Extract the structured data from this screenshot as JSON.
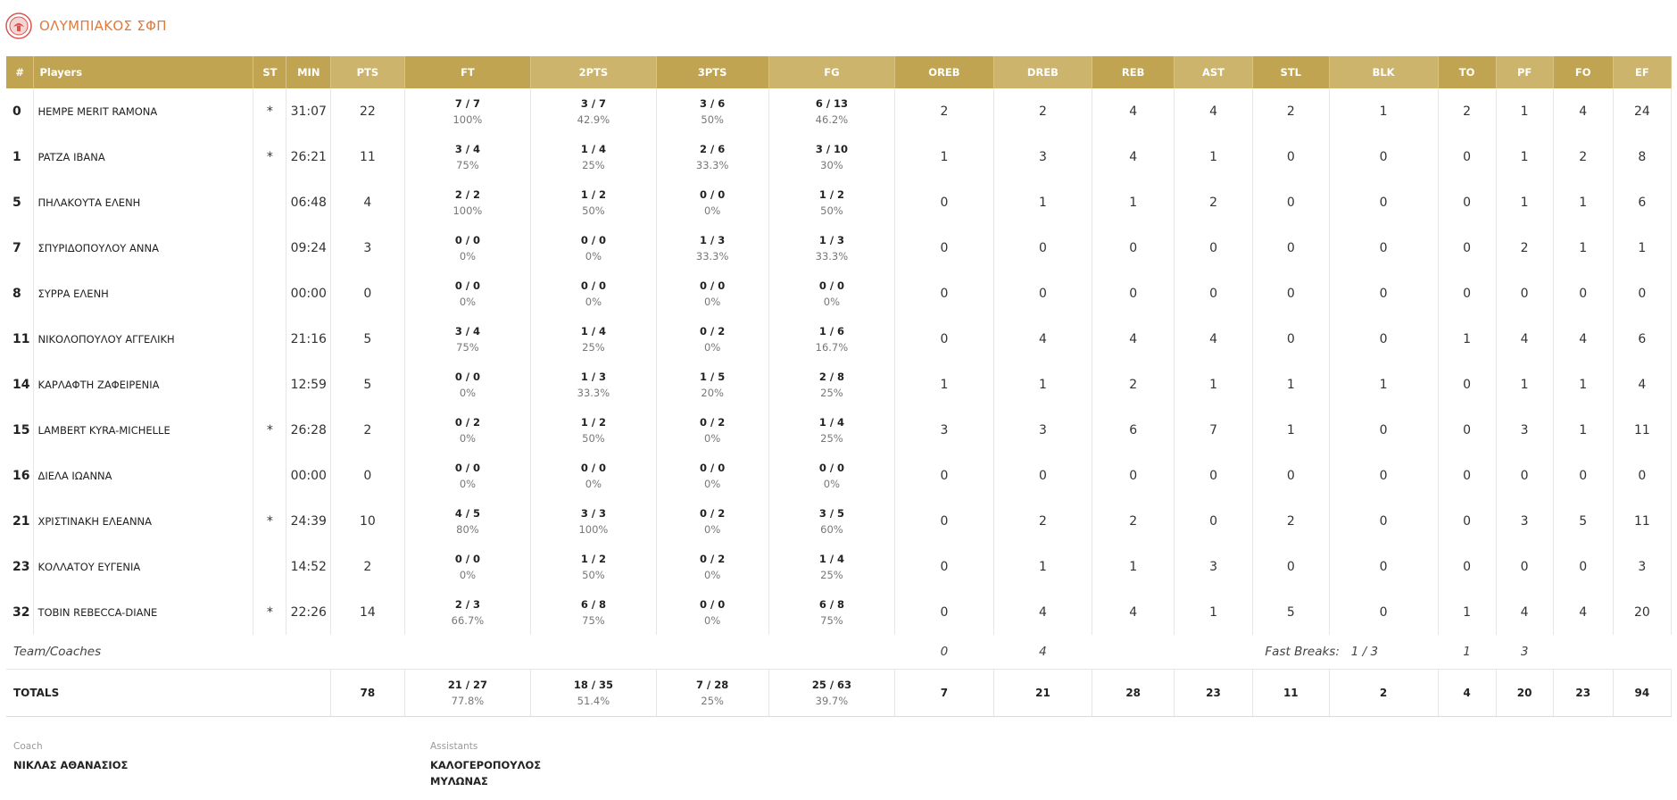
{
  "team": {
    "name": "ΟΛΥΜΠΙΑΚΟΣ ΣΦΠ",
    "logo_icon": "olympiacos-logo"
  },
  "colors": {
    "header_bg": "#c1a452",
    "header_alt_bg": "#cdb46c",
    "team_name": "#e07a3a"
  },
  "headers": {
    "num": "#",
    "players": "Players",
    "st": "ST",
    "min": "MIN",
    "pts": "PTS",
    "ft": "FT",
    "twopts": "2PTS",
    "threepts": "3PTS",
    "fg": "FG",
    "oreb": "OREB",
    "dreb": "DREB",
    "reb": "REB",
    "ast": "AST",
    "stl": "STL",
    "blk": "BLK",
    "to": "TO",
    "pf": "PF",
    "fo": "FO",
    "ef": "EF"
  },
  "players": [
    {
      "num": "0",
      "name": "HEMPE MERIT RAMONA",
      "st": "*",
      "min": "31:07",
      "pts": "22",
      "ft": "7 / 7",
      "ft_pct": "100%",
      "two": "3 / 7",
      "two_pct": "42.9%",
      "three": "3 / 6",
      "three_pct": "50%",
      "fg": "6 / 13",
      "fg_pct": "46.2%",
      "oreb": "2",
      "dreb": "2",
      "reb": "4",
      "ast": "4",
      "stl": "2",
      "blk": "1",
      "to": "2",
      "pf": "1",
      "fo": "4",
      "ef": "24"
    },
    {
      "num": "1",
      "name": "PATZA IBANA",
      "st": "*",
      "min": "26:21",
      "pts": "11",
      "ft": "3 / 4",
      "ft_pct": "75%",
      "two": "1 / 4",
      "two_pct": "25%",
      "three": "2 / 6",
      "three_pct": "33.3%",
      "fg": "3 / 10",
      "fg_pct": "30%",
      "oreb": "1",
      "dreb": "3",
      "reb": "4",
      "ast": "1",
      "stl": "0",
      "blk": "0",
      "to": "0",
      "pf": "1",
      "fo": "2",
      "ef": "8"
    },
    {
      "num": "5",
      "name": "ΠΗΛΑΚΟΥΤΑ ΕΛΕΝΗ",
      "st": "",
      "min": "06:48",
      "pts": "4",
      "ft": "2 / 2",
      "ft_pct": "100%",
      "two": "1 / 2",
      "two_pct": "50%",
      "three": "0 / 0",
      "three_pct": "0%",
      "fg": "1 / 2",
      "fg_pct": "50%",
      "oreb": "0",
      "dreb": "1",
      "reb": "1",
      "ast": "2",
      "stl": "0",
      "blk": "0",
      "to": "0",
      "pf": "1",
      "fo": "1",
      "ef": "6"
    },
    {
      "num": "7",
      "name": "ΣΠΥΡΙΔΟΠΟΥΛΟΥ ΑΝΝΑ",
      "st": "",
      "min": "09:24",
      "pts": "3",
      "ft": "0 / 0",
      "ft_pct": "0%",
      "two": "0 / 0",
      "two_pct": "0%",
      "three": "1 / 3",
      "three_pct": "33.3%",
      "fg": "1 / 3",
      "fg_pct": "33.3%",
      "oreb": "0",
      "dreb": "0",
      "reb": "0",
      "ast": "0",
      "stl": "0",
      "blk": "0",
      "to": "0",
      "pf": "2",
      "fo": "1",
      "ef": "1"
    },
    {
      "num": "8",
      "name": "ΣΥΡΡΑ ΕΛΕΝΗ",
      "st": "",
      "min": "00:00",
      "pts": "0",
      "ft": "0 / 0",
      "ft_pct": "0%",
      "two": "0 / 0",
      "two_pct": "0%",
      "three": "0 / 0",
      "three_pct": "0%",
      "fg": "0 / 0",
      "fg_pct": "0%",
      "oreb": "0",
      "dreb": "0",
      "reb": "0",
      "ast": "0",
      "stl": "0",
      "blk": "0",
      "to": "0",
      "pf": "0",
      "fo": "0",
      "ef": "0"
    },
    {
      "num": "11",
      "name": "ΝΙΚΟΛΟΠΟΥΛΟΥ ΑΓΓΕΛΙΚΗ",
      "st": "",
      "min": "21:16",
      "pts": "5",
      "ft": "3 / 4",
      "ft_pct": "75%",
      "two": "1 / 4",
      "two_pct": "25%",
      "three": "0 / 2",
      "three_pct": "0%",
      "fg": "1 / 6",
      "fg_pct": "16.7%",
      "oreb": "0",
      "dreb": "4",
      "reb": "4",
      "ast": "4",
      "stl": "0",
      "blk": "0",
      "to": "1",
      "pf": "4",
      "fo": "4",
      "ef": "6"
    },
    {
      "num": "14",
      "name": "ΚΑΡΛΑΦΤΗ ΖΑΦΕΙΡΕΝΙΑ",
      "st": "",
      "min": "12:59",
      "pts": "5",
      "ft": "0 / 0",
      "ft_pct": "0%",
      "two": "1 / 3",
      "two_pct": "33.3%",
      "three": "1 / 5",
      "three_pct": "20%",
      "fg": "2 / 8",
      "fg_pct": "25%",
      "oreb": "1",
      "dreb": "1",
      "reb": "2",
      "ast": "1",
      "stl": "1",
      "blk": "1",
      "to": "0",
      "pf": "1",
      "fo": "1",
      "ef": "4"
    },
    {
      "num": "15",
      "name": "LAMBERT KYRA-MICHELLE",
      "st": "*",
      "min": "26:28",
      "pts": "2",
      "ft": "0 / 2",
      "ft_pct": "0%",
      "two": "1 / 2",
      "two_pct": "50%",
      "three": "0 / 2",
      "three_pct": "0%",
      "fg": "1 / 4",
      "fg_pct": "25%",
      "oreb": "3",
      "dreb": "3",
      "reb": "6",
      "ast": "7",
      "stl": "1",
      "blk": "0",
      "to": "0",
      "pf": "3",
      "fo": "1",
      "ef": "11"
    },
    {
      "num": "16",
      "name": "ΔΙΕΛΑ ΙΩΑΝΝΑ",
      "st": "",
      "min": "00:00",
      "pts": "0",
      "ft": "0 / 0",
      "ft_pct": "0%",
      "two": "0 / 0",
      "two_pct": "0%",
      "three": "0 / 0",
      "three_pct": "0%",
      "fg": "0 / 0",
      "fg_pct": "0%",
      "oreb": "0",
      "dreb": "0",
      "reb": "0",
      "ast": "0",
      "stl": "0",
      "blk": "0",
      "to": "0",
      "pf": "0",
      "fo": "0",
      "ef": "0"
    },
    {
      "num": "21",
      "name": "ΧΡΙΣΤΙΝΑΚΗ ΕΛΕΑΝΝΑ",
      "st": "*",
      "min": "24:39",
      "pts": "10",
      "ft": "4 / 5",
      "ft_pct": "80%",
      "two": "3 / 3",
      "two_pct": "100%",
      "three": "0 / 2",
      "three_pct": "0%",
      "fg": "3 / 5",
      "fg_pct": "60%",
      "oreb": "0",
      "dreb": "2",
      "reb": "2",
      "ast": "0",
      "stl": "2",
      "blk": "0",
      "to": "0",
      "pf": "3",
      "fo": "5",
      "ef": "11"
    },
    {
      "num": "23",
      "name": "ΚΟΛΛΑΤΟΥ ΕΥΓΕΝΙΑ",
      "st": "",
      "min": "14:52",
      "pts": "2",
      "ft": "0 / 0",
      "ft_pct": "0%",
      "two": "1 / 2",
      "two_pct": "50%",
      "three": "0 / 2",
      "three_pct": "0%",
      "fg": "1 / 4",
      "fg_pct": "25%",
      "oreb": "0",
      "dreb": "1",
      "reb": "1",
      "ast": "3",
      "stl": "0",
      "blk": "0",
      "to": "0",
      "pf": "0",
      "fo": "0",
      "ef": "3"
    },
    {
      "num": "32",
      "name": "TOBIN REBECCA-DIANE",
      "st": "*",
      "min": "22:26",
      "pts": "14",
      "ft": "2 / 3",
      "ft_pct": "66.7%",
      "two": "6 / 8",
      "two_pct": "75%",
      "three": "0 / 0",
      "three_pct": "0%",
      "fg": "6 / 8",
      "fg_pct": "75%",
      "oreb": "0",
      "dreb": "4",
      "reb": "4",
      "ast": "1",
      "stl": "5",
      "blk": "0",
      "to": "1",
      "pf": "4",
      "fo": "4",
      "ef": "20"
    }
  ],
  "team_coaches": {
    "label": "Team/Coaches",
    "oreb": "0",
    "dreb": "4",
    "fast_breaks_label": "Fast Breaks:",
    "fast_breaks": "1 / 3",
    "to": "1",
    "pf": "3"
  },
  "totals": {
    "label": "TOTALS",
    "pts": "78",
    "ft": "21 / 27",
    "ft_pct": "77.8%",
    "two": "18 / 35",
    "two_pct": "51.4%",
    "three": "7 / 28",
    "three_pct": "25%",
    "fg": "25 / 63",
    "fg_pct": "39.7%",
    "oreb": "7",
    "dreb": "21",
    "reb": "28",
    "ast": "23",
    "stl": "11",
    "blk": "2",
    "to": "4",
    "pf": "20",
    "fo": "23",
    "ef": "94"
  },
  "staff": {
    "coach_label": "Coach",
    "coach": "ΝΙΚΛΑΣ ΑΘΑΝΑΣΙΟΣ",
    "assistants_label": "Assistants",
    "assistants": [
      "ΚΑΛΟΓΕΡΟΠΟΥΛΟΣ",
      "ΜΥΛΩΝΑΣ"
    ]
  }
}
